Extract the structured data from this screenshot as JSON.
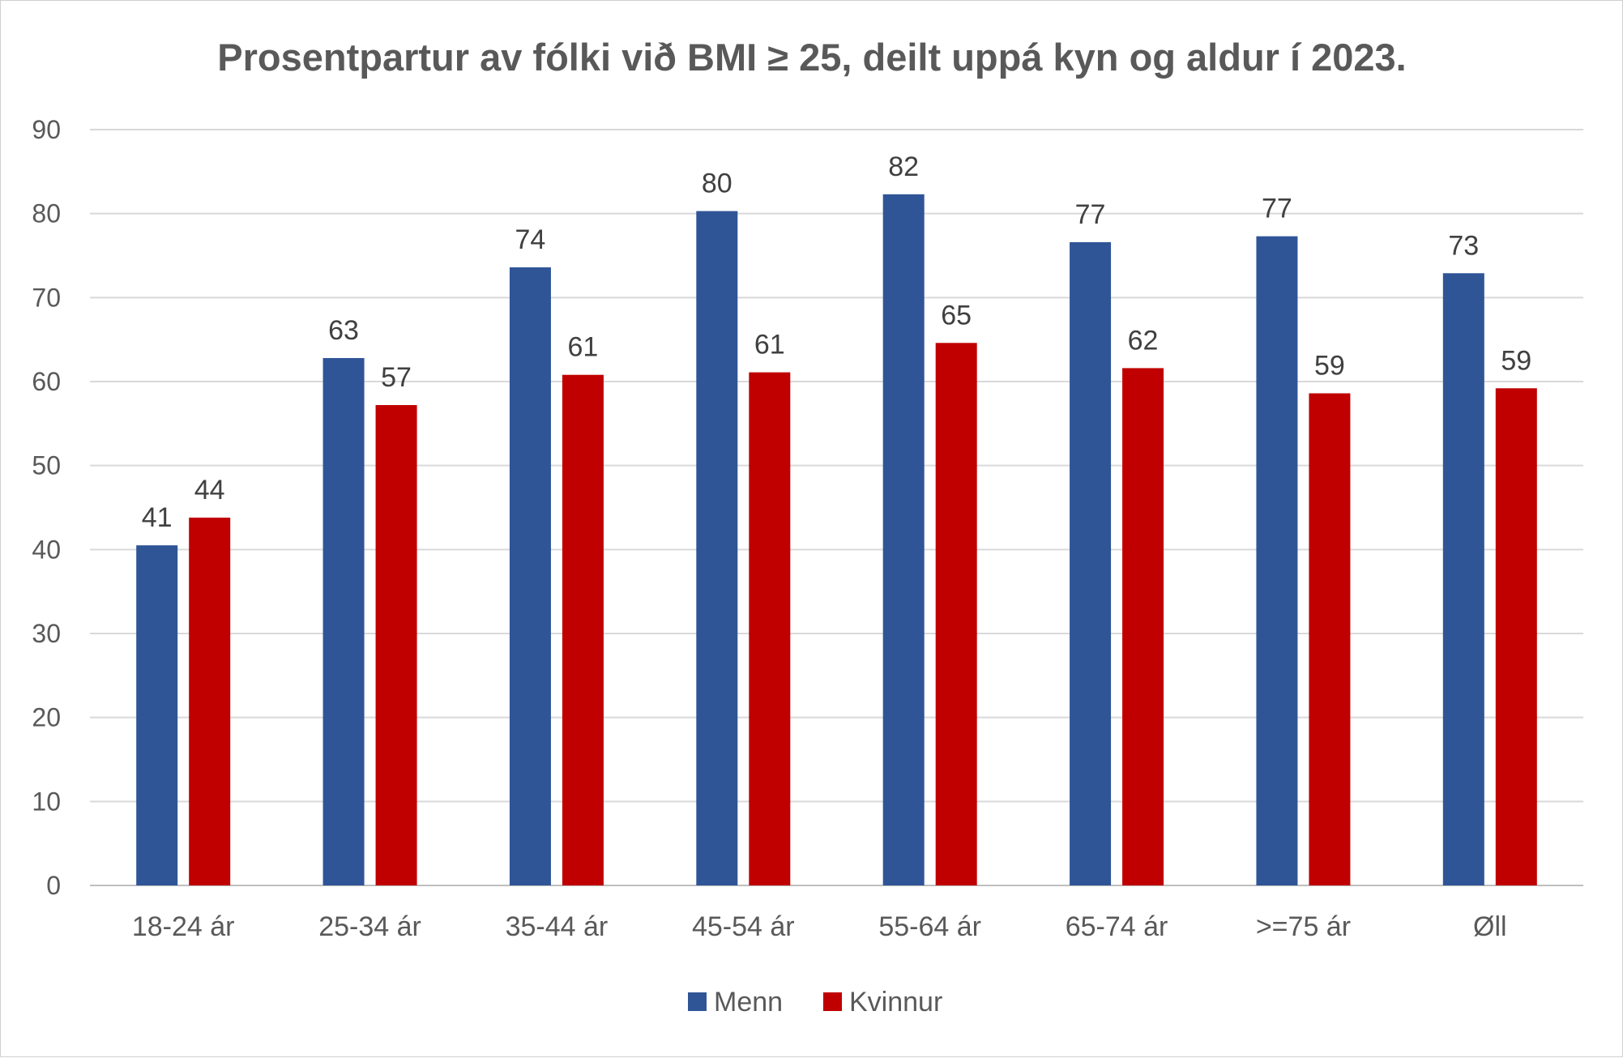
{
  "chart_data": {
    "type": "bar",
    "title": "Prosentpartur av fólki við BMI ≥ 25, deilt uppá kyn og aldur í 2023.",
    "xlabel": "",
    "ylabel": "",
    "ylim": [
      0,
      90
    ],
    "yticks": [
      0,
      10,
      20,
      30,
      40,
      50,
      60,
      70,
      80,
      90
    ],
    "grid": true,
    "legend_position": "bottom",
    "categories": [
      "18-24 ár",
      "25-34 ár",
      "35-44 ár",
      "45-54 ár",
      "55-64 ár",
      "65-74 ár",
      ">=75 ár",
      "Øll"
    ],
    "series": [
      {
        "name": "Menn",
        "color": "#2F5597",
        "values": [
          40.5,
          62.8,
          73.6,
          80.3,
          82.3,
          76.6,
          77.3,
          72.9
        ],
        "labels": [
          "41",
          "63",
          "74",
          "80",
          "82",
          "77",
          "77",
          "73"
        ]
      },
      {
        "name": "Kvinnur",
        "color": "#C00000",
        "values": [
          43.8,
          57.2,
          60.8,
          61.1,
          64.6,
          61.6,
          58.6,
          59.2
        ],
        "labels": [
          "44",
          "57",
          "61",
          "61",
          "65",
          "62",
          "59",
          "59"
        ]
      }
    ]
  }
}
